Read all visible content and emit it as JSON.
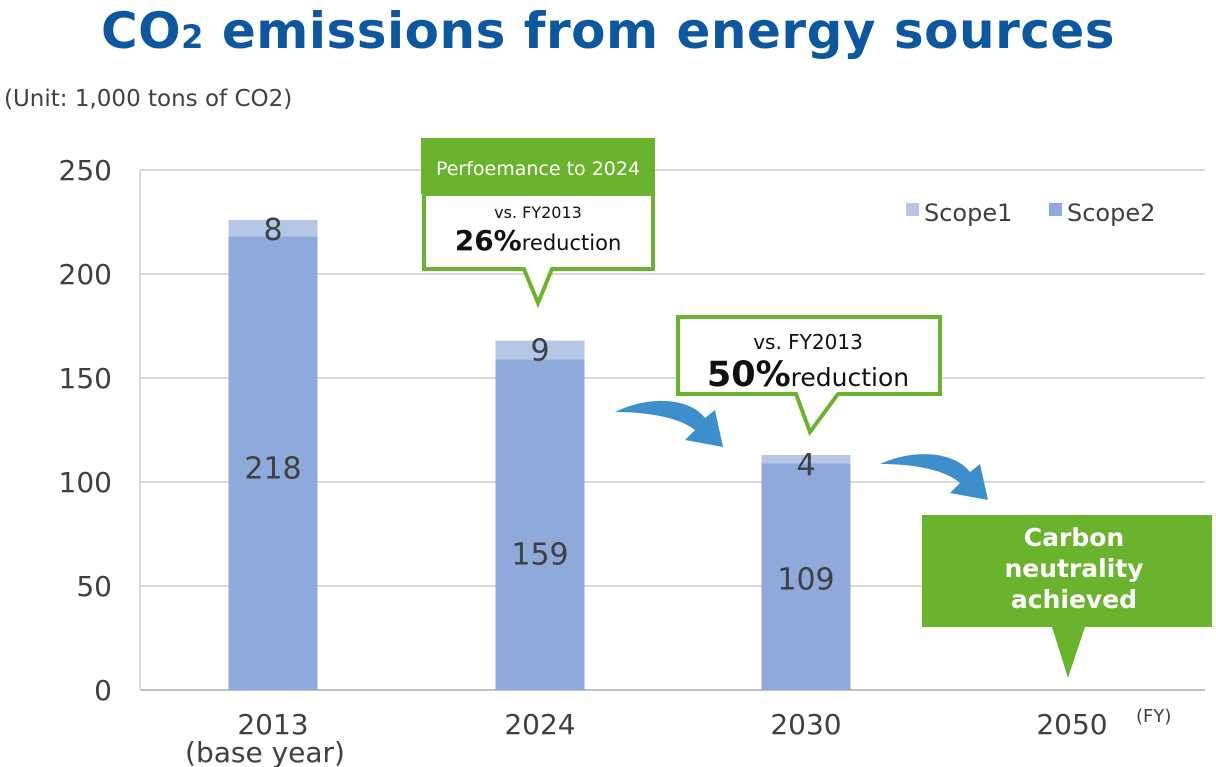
{
  "title": {
    "main": "CO",
    "sub": "2",
    "rest": " emissions from energy sources"
  },
  "unit_label": "(Unit: 1,000 tons of CO2)",
  "chart_data": {
    "type": "bar",
    "stacked": true,
    "title": "CO2 emissions from energy sources",
    "ylabel": "(Unit: 1,000 tons of CO2)",
    "xlabel": "(FY)",
    "categories": [
      "2013",
      "2024",
      "2030",
      "2050"
    ],
    "category_sublabels": [
      "(base year)",
      "",
      "",
      ""
    ],
    "series": [
      {
        "name": "Scope2",
        "values": [
          218,
          159,
          109,
          null
        ],
        "color": "#8eaadb"
      },
      {
        "name": "Scope1",
        "values": [
          8,
          9,
          4,
          null
        ],
        "color": "#b4c7e7"
      }
    ],
    "ylim": [
      0,
      250
    ],
    "yticks": [
      0,
      50,
      100,
      150,
      200,
      250
    ],
    "grid": true,
    "legend": "top-right",
    "annotations": [
      {
        "header": "Perfoemance to 2024",
        "line1": "vs. FY2013",
        "pct": "26%",
        "suffix": "reduction"
      },
      {
        "line1": "vs. FY2013",
        "pct": "50%",
        "suffix": "reduction"
      },
      {
        "text": "Carbon neutrality achieved"
      }
    ]
  },
  "colors": {
    "accent_green": "#6ab42d",
    "arrow_blue": "#3d8fcb",
    "title_blue": "#0b57a0"
  }
}
